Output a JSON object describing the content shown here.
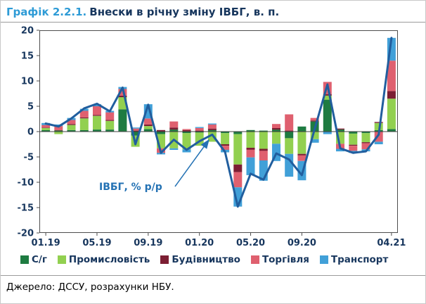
{
  "header": {
    "chart_number": "Графік 2.2.1.",
    "title": "Внески в річну зміну ІВБГ, в. п."
  },
  "annotation": {
    "label": "ІВБГ, % р/р"
  },
  "footer": {
    "source": "Джерело: ДССУ, розрахунки НБУ."
  },
  "colors": {
    "accent_title": "#2e9bd6",
    "text_navy": "#17365d",
    "frame": "#4d4d4d",
    "annotation_blue": "#2472b4"
  },
  "chart_data": {
    "type": "bar",
    "subtype": "stacked-bars-with-line-overlay",
    "title": "Внески в річну зміну ІВБГ, в. п.",
    "xlabel": "",
    "ylabel": "",
    "ylim": [
      -20,
      20
    ],
    "ytick_step": 5,
    "grid": false,
    "legend_position": "bottom",
    "categories": [
      "01.19",
      "02.19",
      "03.19",
      "04.19",
      "05.19",
      "06.19",
      "07.19",
      "08.19",
      "09.19",
      "10.19",
      "11.19",
      "12.19",
      "01.20",
      "02.20",
      "03.20",
      "04.20",
      "05.20",
      "06.20",
      "07.20",
      "08.20",
      "09.20",
      "10.20",
      "11.20",
      "12.20",
      "01.21",
      "02.21",
      "03.21",
      "04.21"
    ],
    "x_tick_labels": [
      "01.19",
      "05.19",
      "09.19",
      "01.20",
      "05.20",
      "09.20",
      "04.21"
    ],
    "x_tick_indices": [
      0,
      4,
      8,
      12,
      16,
      20,
      27
    ],
    "series": [
      {
        "name": "С/г",
        "color": "#1e7b41",
        "values": [
          0.3,
          0.2,
          0.3,
          0.3,
          0.4,
          0.4,
          4.4,
          -0.8,
          0.5,
          -0.5,
          0.4,
          -0.3,
          -0.2,
          0.3,
          -0.3,
          -0.5,
          0.3,
          0.2,
          0.4,
          -1.3,
          1.0,
          2.0,
          6.3,
          0.4,
          -0.4,
          -0.3,
          0.3,
          0.5
        ]
      },
      {
        "name": "Промисловість",
        "color": "#92d050",
        "values": [
          0.4,
          -0.5,
          1.0,
          2.3,
          2.7,
          1.7,
          2.4,
          -2.2,
          0.6,
          -2.8,
          -3.3,
          -3.2,
          -2.6,
          -2.0,
          -2.2,
          -6.0,
          -3.2,
          -3.4,
          -2.4,
          -3.1,
          -4.4,
          -1.5,
          0.8,
          -2.4,
          -2.2,
          -1.8,
          1.4,
          6.0
        ]
      },
      {
        "name": "Будівництво",
        "color": "#7c1e33",
        "values": [
          0.1,
          0.1,
          0.2,
          0.2,
          0.2,
          0.2,
          0.3,
          0.2,
          0.3,
          0.3,
          0.4,
          0.3,
          0.2,
          0.3,
          -0.3,
          -1.5,
          -0.4,
          -0.4,
          0.3,
          0.2,
          -0.3,
          0.2,
          0.3,
          0.2,
          -0.2,
          -0.2,
          0.2,
          1.5
        ]
      },
      {
        "name": "Торгівля",
        "color": "#df606f",
        "values": [
          0.5,
          0.8,
          0.8,
          1.3,
          1.7,
          1.5,
          1.3,
          0.4,
          1.2,
          -0.9,
          1.2,
          0.2,
          0.5,
          0.8,
          -0.8,
          -3.0,
          -1.5,
          -1.9,
          0.8,
          3.2,
          -1.1,
          0.5,
          2.4,
          -1.0,
          -1.0,
          -1.2,
          -2.0,
          6.0
        ]
      },
      {
        "name": "Транспорт",
        "color": "#41a0d8",
        "values": [
          0.4,
          0.3,
          0.4,
          0.4,
          0.4,
          0.3,
          0.4,
          0.2,
          2.8,
          -0.3,
          -0.3,
          -0.6,
          0.2,
          0.2,
          -0.5,
          -3.8,
          -3.5,
          -4.0,
          -3.4,
          -4.5,
          -3.8,
          -0.7,
          -0.5,
          -0.5,
          -0.4,
          -0.4,
          -0.5,
          4.5
        ]
      }
    ],
    "line_series": {
      "name": "ІВБГ, % р/р",
      "color": "#215e9e",
      "values": [
        1.6,
        1.0,
        2.6,
        4.6,
        5.5,
        4.0,
        8.7,
        -2.5,
        5.3,
        -4.2,
        -1.6,
        -3.6,
        -1.9,
        -0.6,
        -4.0,
        -14.8,
        -8.3,
        -9.5,
        -4.3,
        -5.5,
        -8.6,
        0.5,
        9.3,
        -3.3,
        -4.2,
        -3.9,
        -0.6,
        18.5
      ]
    }
  }
}
